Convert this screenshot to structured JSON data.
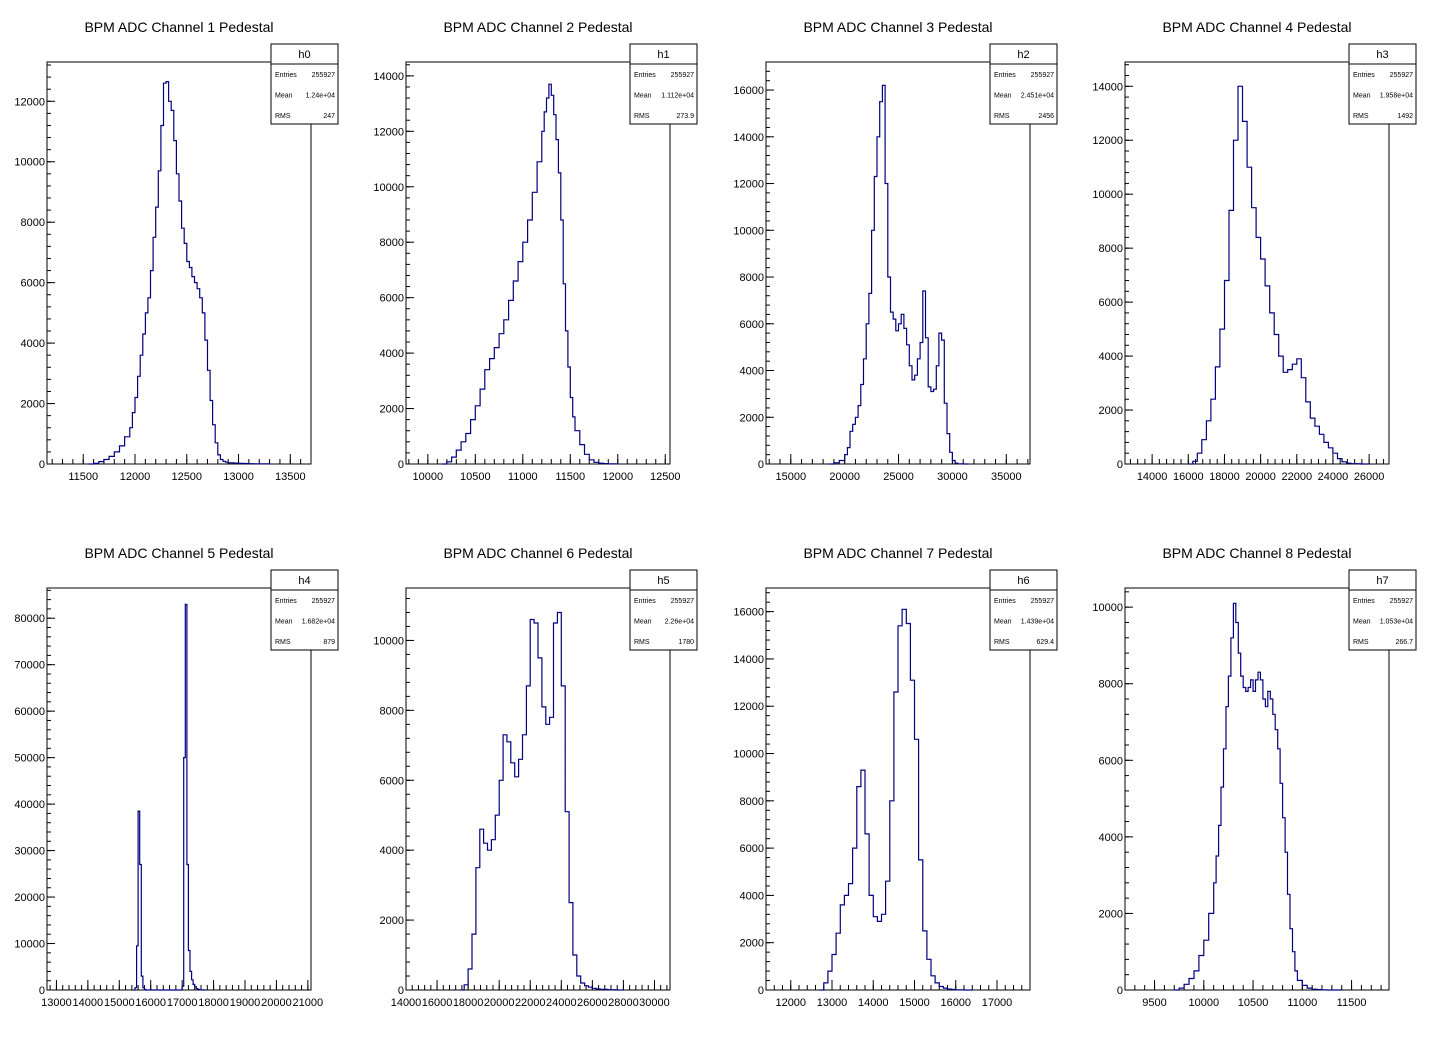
{
  "chart_data": [
    {
      "type": "histogram",
      "title": "BPM ADC Channel 1 Pedestal",
      "stats": {
        "name": "h0",
        "entries_label": "Entries",
        "entries": "255927",
        "mean_label": "Mean",
        "mean": "1.24e+04",
        "rms_label": "RMS",
        "rms": "247"
      },
      "xlim": [
        11150,
        13700
      ],
      "ylim": [
        0,
        13300
      ],
      "xticks": [
        11500,
        12000,
        12500,
        13000,
        13500
      ],
      "yticks": [
        0,
        2000,
        4000,
        6000,
        8000,
        10000,
        12000
      ],
      "x": [
        11550,
        11600,
        11650,
        11700,
        11750,
        11800,
        11850,
        11900,
        11950,
        11975,
        12000,
        12025,
        12050,
        12075,
        12100,
        12125,
        12150,
        12175,
        12200,
        12225,
        12250,
        12275,
        12300,
        12325,
        12350,
        12375,
        12400,
        12425,
        12450,
        12475,
        12500,
        12525,
        12550,
        12575,
        12600,
        12625,
        12650,
        12675,
        12700,
        12725,
        12750,
        12775,
        12800,
        12825,
        12850,
        12875,
        12900,
        12950,
        13000,
        13050,
        13100,
        13150,
        13200,
        13250
      ],
      "values": [
        0,
        20,
        80,
        150,
        250,
        400,
        600,
        900,
        1200,
        1700,
        2200,
        2900,
        3600,
        4300,
        5000,
        5500,
        6400,
        7500,
        8500,
        9700,
        11200,
        12600,
        12650,
        12000,
        11700,
        10700,
        9600,
        8700,
        7800,
        7300,
        6700,
        6500,
        6200,
        6000,
        5800,
        5500,
        5000,
        4100,
        3100,
        2100,
        1300,
        700,
        300,
        150,
        90,
        60,
        40,
        30,
        20,
        15,
        10,
        8,
        5,
        3
      ]
    },
    {
      "type": "histogram",
      "title": "BPM ADC Channel 2 Pedestal",
      "stats": {
        "name": "h1",
        "entries_label": "Entries",
        "entries": "255927",
        "mean_label": "Mean",
        "mean": "1.112e+04",
        "rms_label": "RMS",
        "rms": "273.9"
      },
      "xlim": [
        9770,
        12550
      ],
      "ylim": [
        0,
        14500
      ],
      "xticks": [
        10000,
        10500,
        11000,
        11500,
        12000,
        12500
      ],
      "yticks": [
        0,
        2000,
        4000,
        6000,
        8000,
        10000,
        12000,
        14000
      ],
      "x": [
        10150,
        10200,
        10250,
        10300,
        10350,
        10400,
        10450,
        10500,
        10550,
        10600,
        10650,
        10700,
        10750,
        10800,
        10850,
        10900,
        10950,
        11000,
        11050,
        11100,
        11150,
        11200,
        11225,
        11250,
        11275,
        11300,
        11325,
        11350,
        11375,
        11400,
        11425,
        11450,
        11475,
        11500,
        11525,
        11550,
        11600,
        11650,
        11700,
        11750,
        11800,
        11850,
        11900,
        11950
      ],
      "values": [
        0,
        80,
        250,
        500,
        800,
        1100,
        1600,
        2100,
        2700,
        3400,
        3800,
        4200,
        4700,
        5200,
        5900,
        6600,
        7300,
        8000,
        8800,
        9800,
        10900,
        12000,
        12700,
        13200,
        13700,
        13300,
        12600,
        11700,
        10500,
        8800,
        6500,
        4800,
        3500,
        2400,
        1700,
        1200,
        700,
        350,
        150,
        60,
        30,
        15,
        8,
        3
      ]
    },
    {
      "type": "histogram",
      "title": "BPM ADC Channel 3 Pedestal",
      "stats": {
        "name": "h2",
        "entries_label": "Entries",
        "entries": "255927",
        "mean_label": "Mean",
        "mean": "2.451e+04",
        "rms_label": "RMS",
        "rms": "2456"
      },
      "xlim": [
        12700,
        37200
      ],
      "ylim": [
        0,
        17200
      ],
      "xticks": [
        15000,
        20000,
        25000,
        30000,
        35000
      ],
      "yticks": [
        0,
        2000,
        4000,
        6000,
        8000,
        10000,
        12000,
        14000,
        16000
      ],
      "x": [
        18500,
        19000,
        19500,
        20000,
        20250,
        20500,
        20750,
        21000,
        21250,
        21500,
        21750,
        22000,
        22250,
        22500,
        22750,
        23000,
        23250,
        23500,
        23750,
        24000,
        24250,
        24500,
        24750,
        25000,
        25250,
        25500,
        25750,
        26000,
        26250,
        26500,
        26750,
        27000,
        27250,
        27500,
        27750,
        28000,
        28250,
        28500,
        28750,
        29000,
        29250,
        29500,
        29750,
        30000,
        30250,
        30500,
        31000
      ],
      "values": [
        0,
        50,
        150,
        400,
        700,
        1400,
        1700,
        2000,
        2500,
        3400,
        4500,
        6000,
        7300,
        10000,
        12300,
        14000,
        15500,
        16200,
        12000,
        8000,
        6500,
        6200,
        5700,
        6000,
        6400,
        5800,
        5100,
        4200,
        3600,
        3800,
        4500,
        5200,
        7400,
        5400,
        3300,
        3100,
        3200,
        4200,
        5600,
        5300,
        2600,
        1300,
        500,
        150,
        40,
        10,
        0
      ]
    },
    {
      "type": "histogram",
      "title": "BPM ADC Channel 4 Pedestal",
      "stats": {
        "name": "h3",
        "entries_label": "Entries",
        "entries": "255927",
        "mean_label": "Mean",
        "mean": "1.958e+04",
        "rms_label": "RMS",
        "rms": "1492"
      },
      "xlim": [
        12500,
        27100
      ],
      "ylim": [
        0,
        14900
      ],
      "xticks": [
        14000,
        16000,
        18000,
        20000,
        22000,
        24000,
        26000
      ],
      "yticks": [
        0,
        2000,
        4000,
        6000,
        8000,
        10000,
        12000,
        14000
      ],
      "x": [
        16000,
        16250,
        16500,
        16750,
        17000,
        17250,
        17500,
        17750,
        18000,
        18250,
        18500,
        18750,
        19000,
        19250,
        19500,
        19750,
        20000,
        20250,
        20500,
        20750,
        21000,
        21250,
        21500,
        21750,
        22000,
        22250,
        22500,
        22750,
        23000,
        23250,
        23500,
        23750,
        24000,
        24250,
        24500,
        24750,
        25000,
        25500
      ],
      "values": [
        0,
        100,
        400,
        900,
        1600,
        2400,
        3600,
        5000,
        6800,
        9400,
        12000,
        14000,
        12700,
        11000,
        9500,
        8400,
        7600,
        6600,
        5600,
        4800,
        4000,
        3400,
        3500,
        3700,
        3900,
        3200,
        2300,
        1700,
        1400,
        1100,
        800,
        600,
        400,
        200,
        80,
        30,
        10,
        0
      ]
    },
    {
      "type": "histogram",
      "title": "BPM ADC Channel 5 Pedestal",
      "stats": {
        "name": "h4",
        "entries_label": "Entries",
        "entries": "255927",
        "mean_label": "Mean",
        "mean": "1.682e+04",
        "rms_label": "RMS",
        "rms": "879"
      },
      "xlim": [
        12700,
        21100
      ],
      "ylim": [
        0,
        86500
      ],
      "xticks": [
        13000,
        14000,
        15000,
        16000,
        17000,
        18000,
        19000,
        20000,
        21000
      ],
      "yticks": [
        0,
        10000,
        20000,
        30000,
        40000,
        50000,
        60000,
        70000,
        80000
      ],
      "x": [
        15450,
        15500,
        15550,
        15600,
        15650,
        15700,
        15750,
        15800,
        15850,
        16900,
        17000,
        17050,
        17100,
        17150,
        17200,
        17250,
        17300,
        17350,
        17400,
        17450,
        17500,
        17550,
        17600,
        17650,
        17700
      ],
      "values": [
        0,
        500,
        9500,
        38500,
        27000,
        3000,
        500,
        100,
        0,
        0,
        800,
        50000,
        83000,
        27000,
        8500,
        4000,
        2200,
        1200,
        700,
        300,
        100,
        50,
        20,
        10,
        0
      ]
    },
    {
      "type": "histogram",
      "title": "BPM ADC Channel 6 Pedestal",
      "stats": {
        "name": "h5",
        "entries_label": "Entries",
        "entries": "255927",
        "mean_label": "Mean",
        "mean": "2.26e+04",
        "rms_label": "RMS",
        "rms": "1780"
      },
      "xlim": [
        14000,
        31000
      ],
      "ylim": [
        0,
        11500
      ],
      "xticks": [
        14000,
        16000,
        18000,
        20000,
        22000,
        24000,
        26000,
        28000,
        30000
      ],
      "yticks": [
        0,
        2000,
        4000,
        6000,
        8000,
        10000
      ],
      "x": [
        17500,
        17750,
        18000,
        18250,
        18500,
        18750,
        19000,
        19250,
        19500,
        19750,
        20000,
        20250,
        20500,
        20750,
        21000,
        21250,
        21500,
        21750,
        22000,
        22250,
        22500,
        22750,
        23000,
        23250,
        23500,
        23750,
        24000,
        24250,
        24500,
        24750,
        25000,
        25250,
        25500,
        25750,
        26000,
        26250,
        26500,
        27000,
        27500
      ],
      "values": [
        0,
        150,
        600,
        1600,
        3500,
        4600,
        4200,
        4000,
        4300,
        5000,
        6000,
        7300,
        7100,
        6500,
        6100,
        6600,
        7300,
        8700,
        10600,
        10500,
        9500,
        8100,
        7600,
        7800,
        10500,
        10800,
        8700,
        5100,
        2500,
        1000,
        400,
        200,
        120,
        80,
        50,
        30,
        20,
        10,
        0
      ]
    },
    {
      "type": "histogram",
      "title": "BPM ADC Channel 7 Pedestal",
      "stats": {
        "name": "h6",
        "entries_label": "Entries",
        "entries": "255927",
        "mean_label": "Mean",
        "mean": "1.439e+04",
        "rms_label": "RMS",
        "rms": "629.4"
      },
      "xlim": [
        11400,
        17800
      ],
      "ylim": [
        0,
        17000
      ],
      "xticks": [
        12000,
        13000,
        14000,
        15000,
        16000,
        17000
      ],
      "yticks": [
        0,
        2000,
        4000,
        6000,
        8000,
        10000,
        12000,
        14000,
        16000
      ],
      "x": [
        12700,
        12800,
        12900,
        13000,
        13100,
        13200,
        13300,
        13400,
        13500,
        13600,
        13700,
        13800,
        13900,
        14000,
        14100,
        14200,
        14300,
        14400,
        14500,
        14600,
        14700,
        14800,
        14900,
        15000,
        15100,
        15200,
        15300,
        15400,
        15500,
        15600,
        15700,
        15800,
        15900,
        16000,
        16200
      ],
      "values": [
        0,
        300,
        800,
        1500,
        2400,
        3600,
        4000,
        4500,
        6000,
        8600,
        9300,
        6600,
        4000,
        3100,
        2900,
        3200,
        4600,
        8000,
        12600,
        15400,
        16100,
        15500,
        13100,
        10600,
        5500,
        2500,
        1300,
        600,
        300,
        150,
        80,
        40,
        20,
        10,
        0
      ]
    },
    {
      "type": "histogram",
      "title": "BPM ADC Channel 8 Pedestal",
      "stats": {
        "name": "h7",
        "entries_label": "Entries",
        "entries": "255927",
        "mean_label": "Mean",
        "mean": "1.053e+04",
        "rms_label": "RMS",
        "rms": "266.7"
      },
      "xlim": [
        9200,
        11880
      ],
      "ylim": [
        0,
        10500
      ],
      "xticks": [
        9500,
        10000,
        10500,
        11000,
        11500
      ],
      "yticks": [
        0,
        2000,
        4000,
        6000,
        8000,
        10000
      ],
      "x": [
        9700,
        9750,
        9800,
        9850,
        9900,
        9950,
        10000,
        10050,
        10100,
        10125,
        10150,
        10175,
        10200,
        10225,
        10250,
        10275,
        10300,
        10325,
        10350,
        10375,
        10400,
        10425,
        10450,
        10475,
        10500,
        10525,
        10550,
        10575,
        10600,
        10625,
        10650,
        10675,
        10700,
        10725,
        10750,
        10775,
        10800,
        10825,
        10850,
        10875,
        10900,
        10925,
        10950,
        11000,
        11050,
        11100,
        11150,
        11200,
        11250,
        11300,
        11350
      ],
      "values": [
        0,
        50,
        150,
        300,
        500,
        900,
        1300,
        2000,
        2800,
        3500,
        4300,
        5300,
        6300,
        7400,
        8200,
        9200,
        10100,
        9600,
        8800,
        8200,
        7900,
        7800,
        7900,
        8100,
        7800,
        8100,
        8300,
        8100,
        7600,
        7400,
        7800,
        7600,
        7200,
        6800,
        6300,
        5400,
        4500,
        3600,
        2500,
        1600,
        1000,
        500,
        250,
        120,
        50,
        20,
        10,
        5,
        0,
        0,
        0
      ]
    }
  ]
}
